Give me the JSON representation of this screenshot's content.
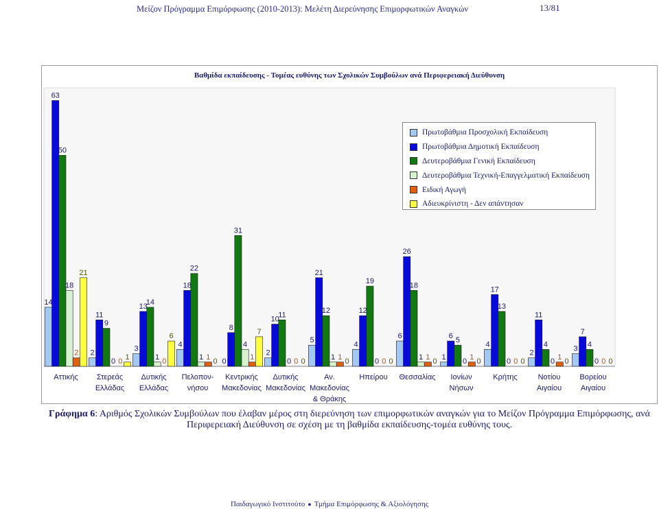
{
  "header": {
    "left": "Μείζον Πρόγραμμα Επιμόρφωσης (2010-2013): Μελέτη Διερεύνησης Επιμορφωτικών Αναγκών",
    "page": "13/81"
  },
  "caption": {
    "prefix": "Γράφημα 6",
    "text": ": Αριθμός Σχολικών Συμβούλων που έλαβαν μέρος στη διερεύνηση των επιμορφωτικών αναγκών για το Μείζον Πρόγραμμα Επιμόρφωσης, ανά Περιφερειακή Διεύθυνση σε σχέση με τη βαθμίδα εκπαίδευσης-τομέα ευθύνης τους."
  },
  "footer": {
    "left": "Παιδαγωγικό Ινστιτούτο",
    "right": "Τμήμα Επιμόρφωσης & Αξιολόγησης"
  },
  "chart_data": {
    "type": "bar",
    "title": "Βαθμίδα εκπαίδευσης - Τομέας ευθύνης των Σχολικών Συμβούλων ανά Περιφερειακή Διεύθυνση",
    "legend_position": "top-right",
    "grid": false,
    "ylim": [
      0,
      66
    ],
    "categories": [
      [
        "Αττικής"
      ],
      [
        "Στερεάς",
        "Ελλάδας"
      ],
      [
        "Δυτικής",
        "Ελλάδας"
      ],
      [
        "Πελοπον-",
        "νήσου"
      ],
      [
        "Κεντρικής",
        "Μακεδονίας"
      ],
      [
        "Δυτικής",
        "Μακεδονίας"
      ],
      [
        "Αν.",
        "Μακεδονίας",
        "& Θράκης"
      ],
      [
        "Ηπείρου"
      ],
      [
        "Θεσσαλίας"
      ],
      [
        "Ιονίων",
        "Νήσων"
      ],
      [
        "Κρήτης"
      ],
      [
        "Νοτίου",
        "Αιγαίου"
      ],
      [
        "Βορείου",
        "Αιγαίου"
      ]
    ],
    "series": [
      {
        "name": "Πρωτοβάθμια Προσχολική Εκπαίδευση",
        "color": "#a4c8f0",
        "values": [
          14,
          2,
          3,
          4,
          0,
          2,
          5,
          4,
          6,
          1,
          4,
          2,
          3
        ]
      },
      {
        "name": "Πρωτοβάθμια Δημοτική Εκπαίδευση",
        "color": "#0a0ad8",
        "values": [
          63,
          11,
          13,
          18,
          8,
          10,
          21,
          12,
          26,
          6,
          17,
          11,
          7
        ]
      },
      {
        "name": "Δευτεροβάθμια Γενική Εκπαίδευση",
        "color": "#127812",
        "values": [
          50,
          9,
          14,
          22,
          31,
          11,
          12,
          19,
          18,
          5,
          13,
          4,
          4
        ]
      },
      {
        "name": "Δευτεροβάθμια Τεχνική-Επαγγελματική Εκπαίδευση",
        "color": "#d6f2d0",
        "values": [
          18,
          0,
          1,
          1,
          4,
          0,
          1,
          0,
          1,
          0,
          0,
          0,
          0
        ]
      },
      {
        "name": "Ειδική Αγωγή",
        "color": "#e06010",
        "values": [
          2,
          0,
          0,
          1,
          1,
          0,
          1,
          0,
          1,
          1,
          0,
          1,
          0
        ]
      },
      {
        "name": "Αδιευκρίνιστη - Δεν απάντησαν",
        "color": "#ffff40",
        "values": [
          21,
          1,
          6,
          0,
          7,
          0,
          0,
          0,
          0,
          0,
          0,
          0,
          0
        ]
      }
    ]
  }
}
